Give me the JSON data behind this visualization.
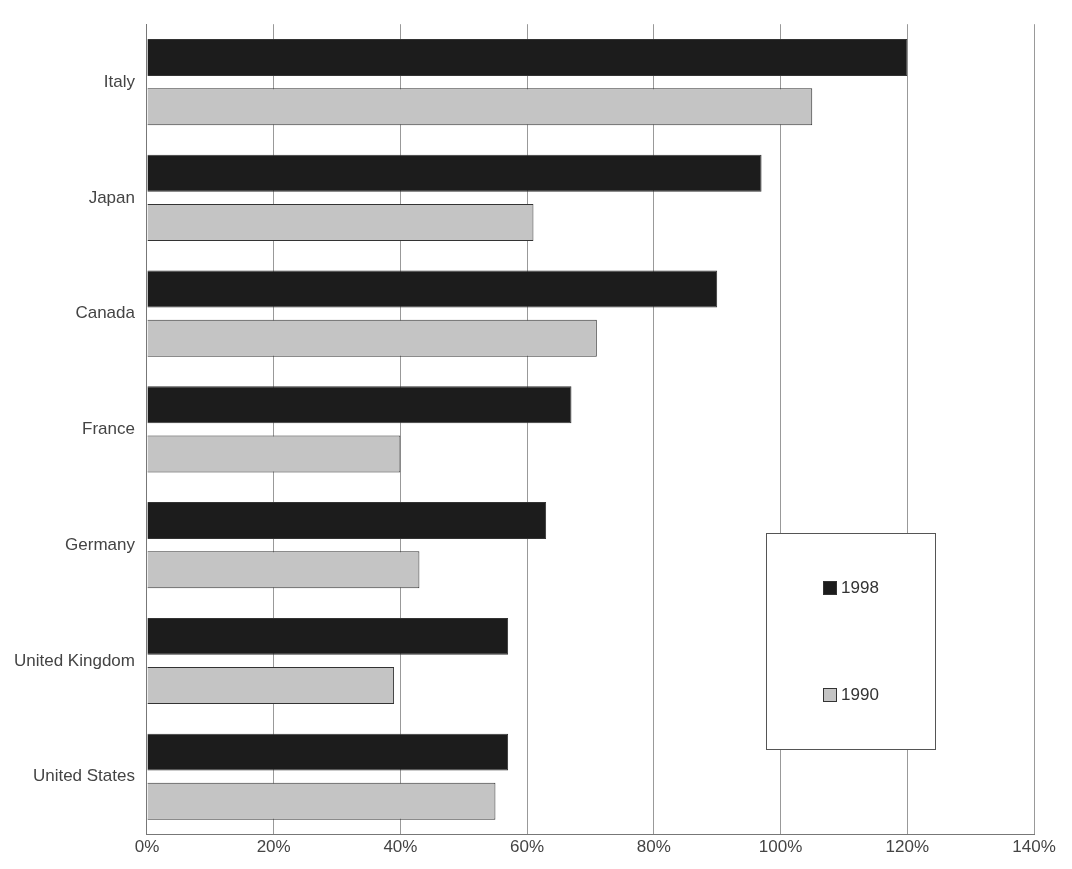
{
  "chart_data": {
    "type": "bar",
    "orientation": "horizontal",
    "categories": [
      "Italy",
      "Japan",
      "Canada",
      "France",
      "Germany",
      "United Kingdom",
      "United States"
    ],
    "series": [
      {
        "name": "1998",
        "color": "#1c1c1c",
        "values": [
          120,
          97,
          90,
          67,
          63,
          57,
          57
        ]
      },
      {
        "name": "1990",
        "color": "#c4c4c4",
        "values": [
          105,
          61,
          71,
          40,
          43,
          39,
          55
        ]
      }
    ],
    "xlim": [
      0,
      140
    ],
    "xticks": [
      {
        "value": 0,
        "label": "0%"
      },
      {
        "value": 20,
        "label": "20%"
      },
      {
        "value": 40,
        "label": "40%"
      },
      {
        "value": 60,
        "label": "60%"
      },
      {
        "value": 80,
        "label": "80%"
      },
      {
        "value": 100,
        "label": "100%"
      },
      {
        "value": 120,
        "label": "120%"
      },
      {
        "value": 140,
        "label": "140%"
      }
    ],
    "grid": "x",
    "legend": "right"
  }
}
